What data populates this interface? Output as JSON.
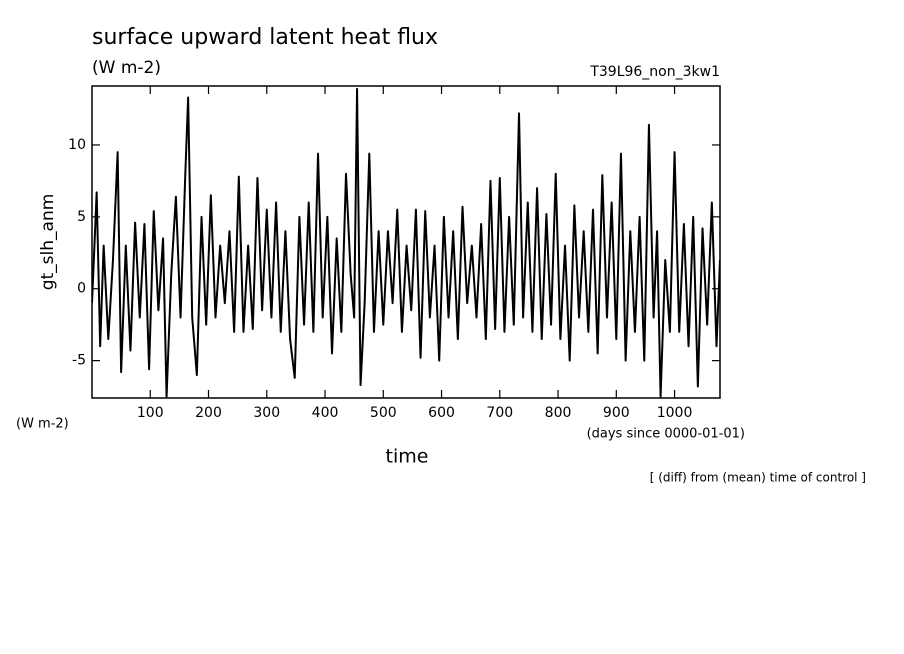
{
  "chart_data": {
    "type": "line",
    "title": "surface upward latent heat flux",
    "subtitle": "(W m-2)",
    "run_label": "T39L96_non_3kw1",
    "y_label": "gt_slh_anm",
    "y_unit_label": "(W m-2)",
    "x_label": "time",
    "x_unit_label": "(days since 0000-01-01)",
    "note": "[ (diff) from (mean) time of control ]",
    "xlim": [
      0,
      1078
    ],
    "ylim": [
      -7.6,
      14.1
    ],
    "xticks": [
      100,
      200,
      300,
      400,
      500,
      600,
      700,
      800,
      900,
      1000
    ],
    "yticks": [
      -5,
      0,
      5,
      10
    ],
    "x": [
      0,
      8,
      14,
      20,
      28,
      36,
      44,
      50,
      58,
      66,
      74,
      82,
      90,
      98,
      106,
      114,
      122,
      128,
      136,
      144,
      152,
      160,
      165,
      172,
      180,
      188,
      196,
      204,
      212,
      220,
      228,
      236,
      244,
      252,
      260,
      268,
      276,
      284,
      292,
      300,
      308,
      316,
      324,
      332,
      340,
      348,
      356,
      364,
      372,
      380,
      388,
      396,
      404,
      412,
      420,
      428,
      436,
      444,
      450,
      455,
      461,
      468,
      476,
      484,
      492,
      500,
      508,
      516,
      524,
      532,
      540,
      548,
      556,
      564,
      572,
      580,
      588,
      596,
      604,
      612,
      620,
      628,
      636,
      644,
      652,
      660,
      668,
      676,
      684,
      692,
      700,
      708,
      716,
      724,
      733,
      740,
      748,
      756,
      764,
      772,
      780,
      788,
      796,
      804,
      812,
      820,
      828,
      836,
      844,
      852,
      860,
      868,
      876,
      884,
      892,
      900,
      908,
      916,
      924,
      932,
      940,
      948,
      956,
      964,
      970,
      976,
      984,
      992,
      1000,
      1008,
      1016,
      1024,
      1032,
      1040,
      1048,
      1056,
      1064,
      1072,
      1078
    ],
    "series": [
      {
        "name": "gt_slh_anm",
        "color": "#000000",
        "values": [
          -1,
          6.7,
          -4,
          3,
          -3.5,
          2,
          9.5,
          -5.8,
          3,
          -4.3,
          4.6,
          -2,
          4.5,
          -5.6,
          5.4,
          -1.5,
          3.5,
          -7.5,
          1,
          6.4,
          -2,
          7.8,
          13.3,
          -2,
          -6,
          5,
          -2.5,
          6.5,
          -2,
          3,
          -1,
          4,
          -3,
          7.8,
          -3,
          3,
          -2.8,
          7.7,
          -1.5,
          5.5,
          -2,
          6,
          -3,
          4,
          -3.5,
          -6.2,
          5,
          -2.5,
          6,
          -3,
          9.4,
          -2,
          5,
          -4.5,
          3.5,
          -3,
          8,
          1,
          -2,
          13.9,
          -6.7,
          -1,
          9.4,
          -3,
          4,
          -2.5,
          4,
          -1,
          5.5,
          -3,
          3,
          -1.5,
          5.5,
          -4.8,
          5.4,
          -2,
          3,
          -5,
          5,
          -2,
          4,
          -3.5,
          5.7,
          -1,
          3,
          -2,
          4.5,
          -3.5,
          7.5,
          -2.8,
          7.7,
          -3,
          5,
          -2.5,
          12.2,
          -2,
          6,
          -3,
          7,
          -3.5,
          5.2,
          -2.5,
          8,
          -3.5,
          3,
          -5,
          5.8,
          -2,
          4,
          -3,
          5.5,
          -4.5,
          7.9,
          -2,
          6,
          -3.5,
          9.4,
          -5,
          4,
          -3,
          5,
          -5,
          11.4,
          -2,
          4,
          -7.5,
          2,
          -3,
          9.5,
          -3,
          4.5,
          -4,
          5,
          -6.8,
          4.2,
          -2.5,
          6,
          -4,
          2
        ]
      }
    ]
  }
}
